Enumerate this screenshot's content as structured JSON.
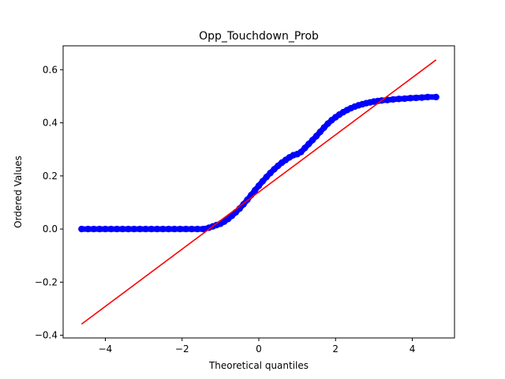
{
  "chart_data": {
    "type": "scatter",
    "title": "Opp_Touchdown_Prob",
    "xlabel": "Theoretical quantiles",
    "ylabel": "Ordered Values",
    "xlim": [
      -5.1,
      5.1
    ],
    "ylim": [
      -0.41,
      0.69
    ],
    "xticks": [
      -4,
      -2,
      0,
      2,
      4
    ],
    "xtick_labels": [
      "−4",
      "−2",
      "0",
      "2",
      "4"
    ],
    "yticks": [
      -0.4,
      -0.2,
      0.0,
      0.2,
      0.4,
      0.6
    ],
    "ytick_labels": [
      "−0.4",
      "−0.2",
      "0.0",
      "0.2",
      "0.4",
      "0.6"
    ],
    "grid": false,
    "series": [
      {
        "kind": "points",
        "color": "#0000ff",
        "x": [
          -4.62,
          -4.45,
          -4.3,
          -4.15,
          -4.0,
          -3.85,
          -3.7,
          -3.55,
          -3.4,
          -3.25,
          -3.1,
          -2.95,
          -2.8,
          -2.65,
          -2.5,
          -2.35,
          -2.2,
          -2.05,
          -1.9,
          -1.75,
          -1.6,
          -1.45,
          -1.3,
          -1.2,
          -1.1,
          -1.0,
          -0.9,
          -0.8,
          -0.7,
          -0.6,
          -0.5,
          -0.4,
          -0.3,
          -0.2,
          -0.1,
          0.0,
          0.1,
          0.2,
          0.3,
          0.4,
          0.5,
          0.6,
          0.7,
          0.8,
          0.9,
          1.0,
          1.1,
          1.2,
          1.3,
          1.4,
          1.5,
          1.6,
          1.7,
          1.8,
          1.9,
          2.0,
          2.1,
          2.2,
          2.3,
          2.4,
          2.5,
          2.6,
          2.7,
          2.8,
          2.9,
          3.0,
          3.1,
          3.2,
          3.35,
          3.5,
          3.65,
          3.8,
          3.95,
          4.1,
          4.25,
          4.4,
          4.62
        ],
        "y": [
          0.0,
          0.0,
          0.0,
          0.0,
          0.0,
          0.0,
          0.0,
          0.0,
          0.0,
          0.0,
          0.0,
          0.0,
          0.0,
          0.0,
          0.0,
          0.0,
          0.0,
          0.0,
          0.0,
          0.0,
          0.0,
          0.0,
          0.005,
          0.01,
          0.015,
          0.02,
          0.028,
          0.038,
          0.05,
          0.063,
          0.077,
          0.093,
          0.11,
          0.128,
          0.146,
          0.163,
          0.18,
          0.196,
          0.211,
          0.225,
          0.238,
          0.25,
          0.26,
          0.27,
          0.278,
          0.282,
          0.29,
          0.305,
          0.32,
          0.335,
          0.35,
          0.366,
          0.382,
          0.397,
          0.41,
          0.421,
          0.431,
          0.44,
          0.448,
          0.455,
          0.461,
          0.466,
          0.47,
          0.474,
          0.477,
          0.48,
          0.482,
          0.484,
          0.486,
          0.488,
          0.49,
          0.491,
          0.493,
          0.494,
          0.495,
          0.497,
          0.497
        ]
      },
      {
        "kind": "line",
        "color": "#ff0000",
        "x": [
          -4.62,
          4.62
        ],
        "y": [
          -0.358,
          0.637
        ]
      }
    ]
  }
}
